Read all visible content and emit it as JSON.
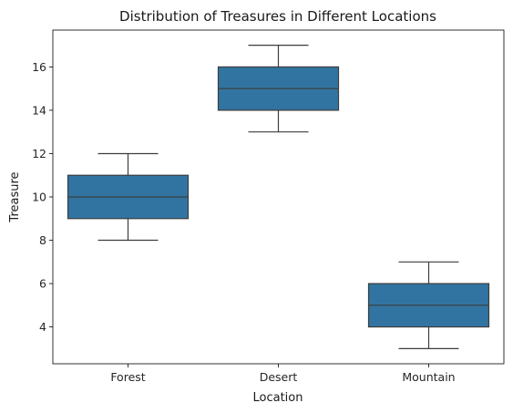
{
  "chart_data": {
    "type": "box",
    "title": "Distribution of Treasures in Different Locations",
    "xlabel": "Location",
    "ylabel": "Treasure",
    "categories": [
      "Forest",
      "Desert",
      "Mountain"
    ],
    "boxes": [
      {
        "category": "Forest",
        "min": 8,
        "q1": 9,
        "median": 10,
        "q3": 11,
        "max": 12
      },
      {
        "category": "Desert",
        "min": 13,
        "q1": 14,
        "median": 15,
        "q3": 16,
        "max": 17
      },
      {
        "category": "Mountain",
        "min": 3,
        "q1": 4,
        "median": 5,
        "q3": 6,
        "max": 7
      }
    ],
    "ylim": [
      2.3,
      17.7
    ],
    "yticks": [
      4,
      6,
      8,
      10,
      12,
      14,
      16
    ],
    "grid": false,
    "colors": {
      "box_fill": "#3274a1",
      "line": "#3d3d3d",
      "axes": "#000000"
    }
  }
}
